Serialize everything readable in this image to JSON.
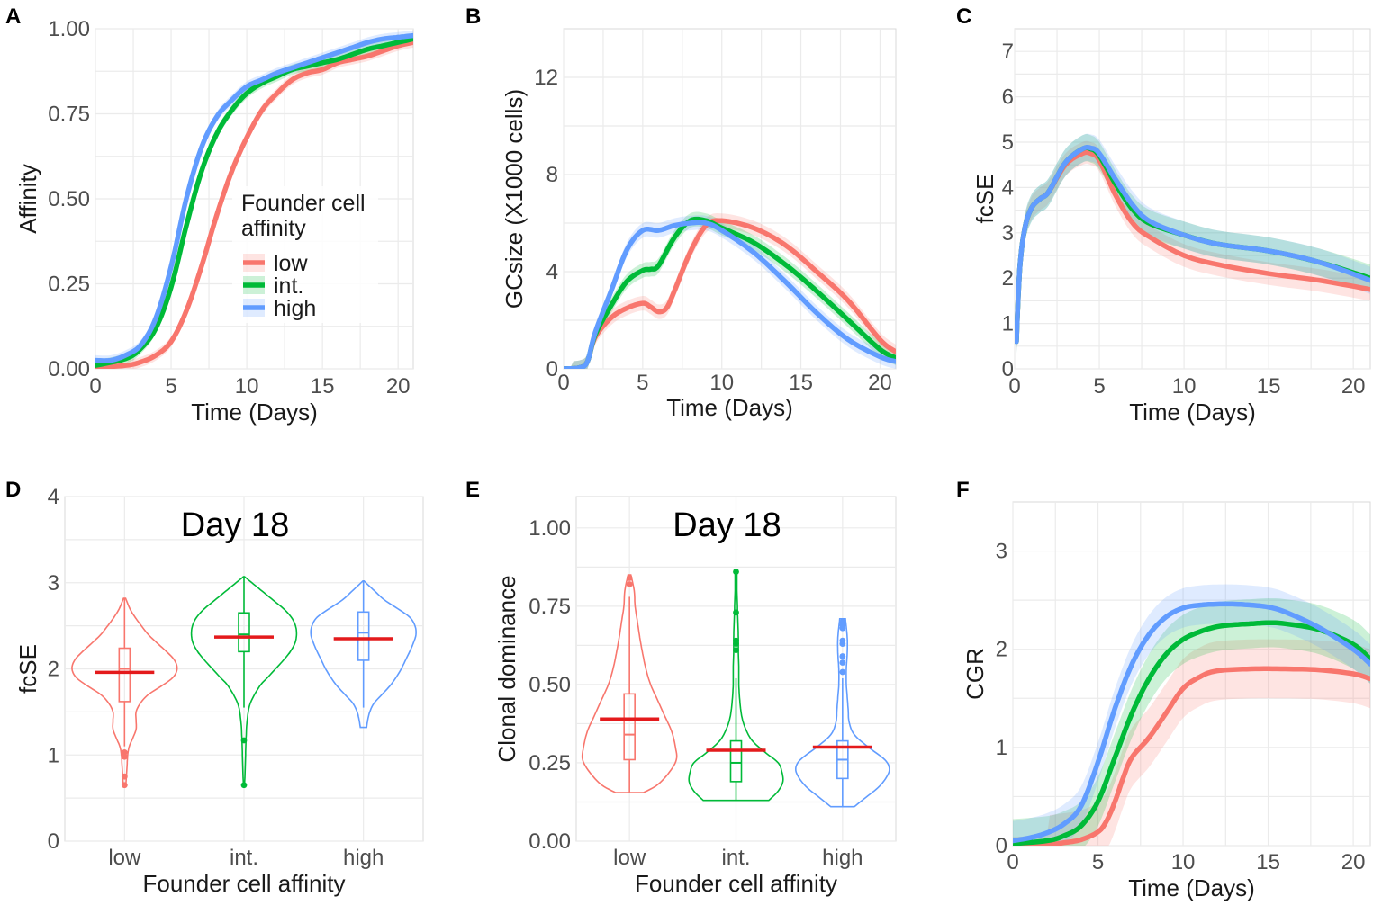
{
  "colors": {
    "low": "#F8766D",
    "int": "#00BA38",
    "high": "#619CFF",
    "median": "#E41A1C"
  },
  "legend": {
    "title_line1": "Founder cell",
    "title_line2": "affinity",
    "labels": [
      "low",
      "int.",
      "high"
    ]
  },
  "chart_data": [
    {
      "id": "A",
      "panel_label": "A",
      "type": "line",
      "title": "",
      "xlabel": "Time (Days)",
      "ylabel": "Affinity",
      "xlim": [
        0,
        21
      ],
      "ylim": [
        0,
        1
      ],
      "xticks": [
        0,
        5,
        10,
        15,
        20
      ],
      "xtick_labels": [
        "0",
        "5",
        "10",
        "15",
        "20"
      ],
      "yticks": [
        0,
        0.25,
        0.5,
        0.75,
        1.0
      ],
      "ytick_labels": [
        "0.00",
        "0.25",
        "0.50",
        "0.75",
        "1.00"
      ],
      "series": [
        {
          "name": "low",
          "band": 0.015,
          "x": [
            0,
            2,
            3,
            4,
            5,
            6,
            7,
            8,
            9,
            10,
            11,
            12,
            13,
            14,
            15,
            16,
            17,
            18,
            19,
            20,
            21
          ],
          "y": [
            0.005,
            0.01,
            0.02,
            0.04,
            0.08,
            0.17,
            0.3,
            0.45,
            0.58,
            0.68,
            0.76,
            0.81,
            0.85,
            0.87,
            0.88,
            0.9,
            0.91,
            0.92,
            0.935,
            0.95,
            0.96
          ]
        },
        {
          "name": "int.",
          "band": 0.015,
          "x": [
            0,
            2,
            3,
            4,
            5,
            6,
            7,
            8,
            9,
            10,
            11,
            12,
            13,
            14,
            15,
            16,
            17,
            18,
            19,
            20,
            21
          ],
          "y": [
            0.01,
            0.03,
            0.06,
            0.12,
            0.24,
            0.42,
            0.58,
            0.69,
            0.76,
            0.81,
            0.84,
            0.86,
            0.88,
            0.89,
            0.9,
            0.91,
            0.925,
            0.94,
            0.95,
            0.96,
            0.97
          ]
        },
        {
          "name": "high",
          "band": 0.015,
          "x": [
            0,
            1,
            2,
            3,
            4,
            5,
            6,
            7,
            8,
            9,
            10,
            11,
            12,
            13,
            14,
            15,
            16,
            17,
            18,
            19,
            20,
            21
          ],
          "y": [
            0.025,
            0.025,
            0.04,
            0.07,
            0.15,
            0.3,
            0.5,
            0.65,
            0.74,
            0.79,
            0.83,
            0.85,
            0.87,
            0.885,
            0.9,
            0.915,
            0.93,
            0.945,
            0.96,
            0.97,
            0.975,
            0.98
          ]
        }
      ]
    },
    {
      "id": "B",
      "panel_label": "B",
      "type": "line",
      "title": "",
      "xlabel": "Time (Days)",
      "ylabel": "GCsize (X1000 cells)",
      "xlim": [
        0,
        21
      ],
      "ylim": [
        0,
        14
      ],
      "xticks": [
        0,
        5,
        10,
        15,
        20
      ],
      "xtick_labels": [
        "0",
        "5",
        "10",
        "15",
        "20"
      ],
      "yticks": [
        0,
        4,
        8,
        12
      ],
      "ytick_labels": [
        "0",
        "4",
        "8",
        "12"
      ],
      "series": [
        {
          "name": "low",
          "band": 0.3,
          "x": [
            0,
            1,
            1.5,
            2,
            3,
            4,
            5,
            5.5,
            6,
            6.5,
            7,
            8,
            9,
            10,
            12,
            14,
            16,
            18,
            20,
            21
          ],
          "y": [
            0,
            0.05,
            0.3,
            1.3,
            2.1,
            2.5,
            2.7,
            2.55,
            2.35,
            2.5,
            3.2,
            4.8,
            5.9,
            6.1,
            5.8,
            5.1,
            4.0,
            2.8,
            1.2,
            0.7
          ]
        },
        {
          "name": "int.",
          "band": 0.3,
          "x": [
            0,
            1,
            1.5,
            2,
            3,
            4,
            5,
            5.5,
            6,
            7,
            8,
            9,
            10,
            12,
            14,
            16,
            18,
            20,
            21
          ],
          "y": [
            0,
            0.05,
            0.3,
            1.4,
            2.6,
            3.6,
            4.05,
            4.1,
            4.25,
            5.4,
            6.1,
            6.1,
            5.8,
            5.2,
            4.3,
            3.2,
            2.0,
            0.8,
            0.45
          ]
        },
        {
          "name": "high",
          "band": 0.3,
          "x": [
            0,
            1,
            1.5,
            2,
            3,
            4,
            5,
            6,
            7,
            8,
            9,
            10,
            12,
            14,
            16,
            18,
            20,
            21
          ],
          "y": [
            0,
            0.05,
            0.3,
            1.5,
            3.2,
            4.9,
            5.7,
            5.7,
            5.9,
            6.0,
            6.0,
            5.7,
            4.8,
            3.6,
            2.3,
            1.2,
            0.5,
            0.3
          ]
        }
      ]
    },
    {
      "id": "C",
      "panel_label": "C",
      "type": "line",
      "title": "",
      "xlabel": "Time (Days)",
      "ylabel": "fcSE",
      "xlim": [
        0,
        21
      ],
      "ylim": [
        0,
        7.5
      ],
      "xticks": [
        0,
        5,
        10,
        15,
        20
      ],
      "xtick_labels": [
        "0",
        "5",
        "10",
        "15",
        "20"
      ],
      "yticks": [
        0,
        1,
        2,
        3,
        4,
        5,
        6,
        7
      ],
      "ytick_labels": [
        "0",
        "1",
        "2",
        "3",
        "4",
        "5",
        "6",
        "7"
      ],
      "series": [
        {
          "name": "low",
          "band": 0.25,
          "x": [
            0.1,
            0.3,
            0.6,
            1,
            1.5,
            2,
            3,
            4,
            4.5,
            5,
            6,
            7,
            8,
            10,
            12,
            15,
            18,
            21
          ],
          "y": [
            0.6,
            2.2,
            3.1,
            3.55,
            3.75,
            3.9,
            4.5,
            4.75,
            4.75,
            4.6,
            3.8,
            3.2,
            2.9,
            2.5,
            2.3,
            2.1,
            1.95,
            1.75
          ]
        },
        {
          "name": "int.",
          "band": 0.3,
          "x": [
            0.1,
            0.3,
            0.6,
            1,
            1.5,
            2,
            3,
            4,
            4.5,
            5,
            6,
            7,
            8,
            10,
            12,
            15,
            18,
            21
          ],
          "y": [
            0.6,
            2.2,
            3.1,
            3.55,
            3.75,
            3.9,
            4.55,
            4.85,
            4.85,
            4.7,
            4.05,
            3.5,
            3.2,
            2.95,
            2.75,
            2.6,
            2.35,
            2.0
          ]
        },
        {
          "name": "high",
          "band": 0.3,
          "x": [
            0.1,
            0.3,
            0.6,
            1,
            1.5,
            2,
            3,
            4,
            4.5,
            5,
            6,
            7,
            8,
            10,
            12,
            15,
            18,
            21
          ],
          "y": [
            0.6,
            2.2,
            3.1,
            3.55,
            3.75,
            3.9,
            4.55,
            4.85,
            4.87,
            4.75,
            4.15,
            3.6,
            3.25,
            2.95,
            2.75,
            2.6,
            2.35,
            1.95
          ]
        }
      ]
    },
    {
      "id": "D",
      "panel_label": "D",
      "type": "violin",
      "title": "Day 18",
      "xlabel": "Founder cell affinity",
      "ylabel": "fcSE",
      "ylim": [
        0,
        4
      ],
      "yticks": [
        0,
        1,
        2,
        3,
        4
      ],
      "ytick_labels": [
        "0",
        "1",
        "2",
        "3",
        "4"
      ],
      "categories": [
        "low",
        "int.",
        "high"
      ],
      "groups": [
        {
          "name": "low",
          "min": 0.63,
          "max": 2.82,
          "q1": 1.62,
          "median": 2.0,
          "q3": 2.24,
          "whisker_low": 1.1,
          "whisker_high": 2.82,
          "mean": 1.96,
          "density_y": [
            0.63,
            0.7,
            0.8,
            0.9,
            1.0,
            1.1,
            1.2,
            1.3,
            1.4,
            1.5,
            1.6,
            1.7,
            1.8,
            1.9,
            2.0,
            2.1,
            2.2,
            2.3,
            2.4,
            2.5,
            2.6,
            2.7,
            2.82
          ],
          "density_w": [
            0.02,
            0.03,
            0.04,
            0.05,
            0.06,
            0.09,
            0.16,
            0.22,
            0.22,
            0.22,
            0.3,
            0.45,
            0.7,
            0.92,
            1.0,
            0.95,
            0.8,
            0.62,
            0.45,
            0.32,
            0.2,
            0.1,
            0.02
          ],
          "outliers": [
            0.65,
            0.75,
            0.98,
            1.03
          ]
        },
        {
          "name": "int.",
          "min": 0.63,
          "max": 3.07,
          "q1": 2.2,
          "median": 2.4,
          "q3": 2.65,
          "whisker_low": 1.55,
          "whisker_high": 3.07,
          "mean": 2.37,
          "density_y": [
            0.63,
            0.8,
            1.0,
            1.2,
            1.4,
            1.6,
            1.8,
            1.9,
            2.0,
            2.1,
            2.2,
            2.3,
            2.4,
            2.5,
            2.6,
            2.7,
            2.8,
            2.9,
            3.0,
            3.07
          ],
          "density_w": [
            0.01,
            0.02,
            0.03,
            0.04,
            0.06,
            0.12,
            0.3,
            0.45,
            0.6,
            0.75,
            0.88,
            0.97,
            1.0,
            0.98,
            0.9,
            0.75,
            0.55,
            0.35,
            0.15,
            0.01
          ],
          "outliers": [
            0.65,
            1.17
          ]
        },
        {
          "name": "high",
          "min": 1.32,
          "max": 3.02,
          "q1": 2.1,
          "median": 2.42,
          "q3": 2.66,
          "whisker_low": 1.55,
          "whisker_high": 3.02,
          "mean": 2.35,
          "density_y": [
            1.32,
            1.4,
            1.5,
            1.6,
            1.7,
            1.8,
            1.9,
            2.0,
            2.1,
            2.2,
            2.3,
            2.4,
            2.5,
            2.6,
            2.7,
            2.8,
            2.9,
            3.02
          ],
          "density_w": [
            0.06,
            0.08,
            0.12,
            0.2,
            0.35,
            0.5,
            0.62,
            0.72,
            0.8,
            0.88,
            0.95,
            1.0,
            0.98,
            0.88,
            0.65,
            0.4,
            0.22,
            0.01
          ],
          "outliers": []
        }
      ]
    },
    {
      "id": "E",
      "panel_label": "E",
      "type": "violin",
      "title": "Day 18",
      "xlabel": "Founder cell affinity",
      "ylabel": "Clonal dominance",
      "ylim": [
        0,
        1.1
      ],
      "yticks": [
        0,
        0.25,
        0.5,
        0.75,
        1.0
      ],
      "ytick_labels": [
        "0.00",
        "0.25",
        "0.50",
        "0.75",
        "1.00"
      ],
      "categories": [
        "low",
        "int.",
        "high"
      ],
      "groups": [
        {
          "name": "low",
          "min": 0.155,
          "max": 0.85,
          "q1": 0.26,
          "median": 0.34,
          "q3": 0.47,
          "whisker_low": 0.155,
          "whisker_high": 0.78,
          "mean": 0.39,
          "density_y": [
            0.155,
            0.18,
            0.22,
            0.26,
            0.3,
            0.35,
            0.4,
            0.45,
            0.5,
            0.55,
            0.6,
            0.65,
            0.7,
            0.75,
            0.8,
            0.85
          ],
          "density_w": [
            0.3,
            0.6,
            0.85,
            1.0,
            0.98,
            0.9,
            0.75,
            0.6,
            0.45,
            0.35,
            0.28,
            0.22,
            0.17,
            0.12,
            0.1,
            0.03
          ],
          "outliers": [
            0.82,
            0.84
          ]
        },
        {
          "name": "int.",
          "min": 0.13,
          "max": 0.86,
          "q1": 0.19,
          "median": 0.25,
          "q3": 0.32,
          "whisker_low": 0.13,
          "whisker_high": 0.52,
          "mean": 0.29,
          "density_y": [
            0.13,
            0.16,
            0.19,
            0.22,
            0.25,
            0.28,
            0.32,
            0.36,
            0.4,
            0.45,
            0.5,
            0.55,
            0.6,
            0.65,
            0.7,
            0.75,
            0.8,
            0.86
          ],
          "density_w": [
            0.7,
            0.9,
            1.0,
            0.98,
            0.9,
            0.65,
            0.35,
            0.2,
            0.12,
            0.08,
            0.06,
            0.06,
            0.05,
            0.05,
            0.04,
            0.03,
            0.02,
            0.02
          ],
          "outliers": [
            0.61,
            0.63,
            0.64,
            0.73,
            0.86
          ]
        },
        {
          "name": "high",
          "min": 0.11,
          "max": 0.71,
          "q1": 0.2,
          "median": 0.26,
          "q3": 0.32,
          "whisker_low": 0.11,
          "whisker_high": 0.52,
          "mean": 0.3,
          "density_y": [
            0.11,
            0.14,
            0.17,
            0.2,
            0.23,
            0.26,
            0.3,
            0.34,
            0.38,
            0.42,
            0.46,
            0.5,
            0.55,
            0.6,
            0.65,
            0.71
          ],
          "density_w": [
            0.25,
            0.5,
            0.75,
            0.92,
            1.0,
            0.9,
            0.55,
            0.25,
            0.14,
            0.12,
            0.1,
            0.08,
            0.08,
            0.1,
            0.1,
            0.06
          ],
          "outliers": [
            0.54,
            0.57,
            0.59,
            0.63,
            0.64,
            0.68,
            0.69,
            0.7
          ]
        }
      ]
    },
    {
      "id": "F",
      "panel_label": "F",
      "type": "line",
      "title": "",
      "xlabel": "Time (Days)",
      "ylabel": "CGR",
      "xlim": [
        0,
        21
      ],
      "ylim": [
        0,
        3.5
      ],
      "xticks": [
        0,
        5,
        10,
        15,
        20
      ],
      "xtick_labels": [
        "0",
        "5",
        "10",
        "15",
        "20"
      ],
      "yticks": [
        0,
        1,
        2,
        3
      ],
      "ytick_labels": [
        "0",
        "1",
        "2",
        "3"
      ],
      "series": [
        {
          "name": "low",
          "band": 0.3,
          "x": [
            0,
            2,
            3,
            4,
            5,
            5.5,
            6,
            6.5,
            7,
            8,
            9,
            10,
            11,
            12,
            14,
            16,
            18,
            20,
            21
          ],
          "y": [
            0,
            0.01,
            0.03,
            0.06,
            0.14,
            0.25,
            0.45,
            0.7,
            0.9,
            1.1,
            1.35,
            1.6,
            1.72,
            1.78,
            1.8,
            1.8,
            1.79,
            1.75,
            1.7
          ]
        },
        {
          "name": "int.",
          "band": 0.25,
          "x": [
            0,
            2,
            3,
            4,
            5,
            6,
            7,
            8,
            9,
            10,
            11,
            12,
            13,
            14,
            15,
            16,
            18,
            20,
            21
          ],
          "y": [
            0.02,
            0.05,
            0.1,
            0.2,
            0.45,
            0.9,
            1.35,
            1.7,
            1.95,
            2.1,
            2.18,
            2.23,
            2.25,
            2.26,
            2.27,
            2.26,
            2.2,
            2.05,
            1.9
          ]
        },
        {
          "name": "high",
          "band": 0.2,
          "x": [
            0,
            1,
            2,
            3,
            4,
            5,
            6,
            7,
            8,
            9,
            10,
            11,
            12,
            13,
            14,
            15,
            16,
            18,
            20,
            21
          ],
          "y": [
            0.05,
            0.08,
            0.13,
            0.22,
            0.4,
            0.85,
            1.4,
            1.85,
            2.15,
            2.33,
            2.42,
            2.45,
            2.46,
            2.46,
            2.45,
            2.43,
            2.38,
            2.22,
            2.0,
            1.85
          ]
        }
      ]
    }
  ]
}
